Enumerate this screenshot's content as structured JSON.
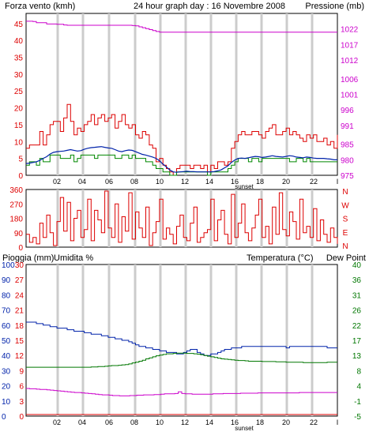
{
  "colors": {
    "wind": "#dd0000",
    "gust": "#dd0000",
    "avg_wind": "#008800",
    "pressure": "#cc00cc",
    "direction": "#dd0000",
    "humidity": "#0022aa",
    "temperature": "#007700",
    "dewpoint": "#cc00cc",
    "rain": "#dd0000",
    "grid": "#cccccc",
    "frame": "#000000",
    "text": "#000000"
  },
  "chart_data": [
    {
      "type": "line",
      "title": "24 hour graph day : 16 Novembre 2008",
      "left_axis_label": "Forza vento (kmh)",
      "right_axis_label": "Pressione (mb)",
      "x_ticks": [
        "02",
        "04",
        "06",
        "08",
        "10",
        "12",
        "14",
        "16",
        "18",
        "20",
        "22",
        "I"
      ],
      "sunset_label": "sunset",
      "left_ticks": [
        "0",
        "5",
        "10",
        "15",
        "20",
        "25",
        "30",
        "35",
        "40",
        "45"
      ],
      "right_ticks": [
        "975",
        "980",
        "985",
        "991",
        "996",
        "1001",
        "1006",
        "1012",
        "1017",
        "1022"
      ],
      "ylim_left": [
        0,
        48
      ],
      "ylim_right": [
        975,
        1027
      ],
      "series": [
        {
          "key": "wind_gust",
          "values": [
            8,
            9,
            9,
            9,
            13,
            9,
            12,
            15,
            16,
            16,
            13,
            17,
            21,
            16,
            12,
            14,
            13,
            15,
            16,
            18,
            15,
            17,
            18,
            16,
            17,
            18,
            14,
            16,
            18,
            15,
            14,
            15,
            12,
            11,
            13,
            12,
            9,
            8,
            4,
            5,
            3,
            2,
            1,
            0,
            2,
            3,
            3,
            3,
            2,
            3,
            3,
            2,
            3,
            1,
            3,
            2,
            4,
            4,
            3,
            4,
            8,
            10,
            12,
            13,
            12,
            12,
            13,
            13,
            12,
            11,
            13,
            14,
            15,
            12,
            12,
            13,
            14,
            12,
            13,
            12,
            11,
            10,
            12,
            11,
            12,
            10,
            10,
            11,
            9,
            10,
            8,
            12
          ]
        },
        {
          "key": "wind_avg",
          "values": [
            3,
            4,
            4,
            3,
            5,
            4,
            4,
            6,
            6,
            6,
            5,
            5,
            5,
            6,
            4,
            5,
            6,
            6,
            6,
            6,
            5,
            6,
            6,
            6,
            6,
            6,
            5,
            5,
            6,
            6,
            5,
            6,
            5,
            5,
            5,
            4,
            4,
            3,
            2,
            2,
            1,
            1,
            0,
            0,
            1,
            1,
            1,
            1,
            1,
            1,
            1,
            1,
            1,
            0,
            1,
            1,
            1,
            1,
            1,
            2,
            3,
            4,
            5,
            5,
            5,
            4,
            5,
            5,
            4,
            5,
            5,
            5,
            5,
            5,
            5,
            5,
            5,
            4,
            4,
            5,
            5,
            4,
            5,
            4,
            4,
            4,
            4,
            4,
            4,
            4,
            4,
            4
          ]
        },
        {
          "key": "wind_mean",
          "values": [
            3.5,
            3.6,
            3.8,
            4,
            4.4,
            5,
            5.5,
            6.3,
            6.8,
            7,
            7.1,
            7.2,
            7.4,
            7.6,
            7.4,
            7.2,
            7.3,
            7.7,
            8,
            8.2,
            8.3,
            8.4,
            8.5,
            8.3,
            8.1,
            8,
            7.6,
            7.2,
            7,
            7.3,
            7.5,
            7.4,
            7,
            6.6,
            6.2,
            6,
            5.7,
            5.4,
            5,
            4.3,
            3.3,
            2.5,
            1.6,
            1,
            0.9,
            1,
            1.1,
            1.2,
            1.1,
            1.1,
            1,
            1,
            1,
            1,
            1,
            1.1,
            1.3,
            1.6,
            2.2,
            2.8,
            3.8,
            4.5,
            5,
            5.1,
            5,
            5.2,
            5.4,
            5.6,
            5.5,
            5.3,
            5.4,
            5.6,
            5.8,
            5.6,
            5.5,
            5.4,
            5.6,
            5.8,
            5.7,
            5.4,
            5.3,
            5.2,
            5.4,
            5.3,
            5.1,
            5,
            5,
            5,
            4.9,
            4.8,
            4.6,
            4.6
          ]
        },
        {
          "key": "pressure",
          "values": [
            1024.5,
            1024.5,
            1024.4,
            1024,
            1024,
            1024,
            1023.6,
            1023.6,
            1023.6,
            1023.5,
            1023.5,
            1023.3,
            1023.2,
            1023.2,
            1023.2,
            1023.2,
            1023.2,
            1023.2,
            1023.2,
            1023.2,
            1023.2,
            1023.2,
            1023.2,
            1023.2,
            1023.2,
            1023.2,
            1023.2,
            1023.2,
            1023.2,
            1023.2,
            1023.2,
            1023.1,
            1023,
            1022.7,
            1022.4,
            1022.1,
            1021.8,
            1021.5,
            1021.2,
            1021,
            1021,
            1021,
            1021,
            1021,
            1021,
            1021,
            1021,
            1021,
            1021,
            1021,
            1021,
            1021,
            1021,
            1021,
            1021,
            1021,
            1021,
            1021,
            1021,
            1021,
            1021,
            1021,
            1021,
            1021,
            1021,
            1021,
            1021,
            1021,
            1021,
            1021,
            1021,
            1021,
            1021,
            1021,
            1021,
            1021,
            1021,
            1021,
            1021,
            1021,
            1021,
            1021,
            1021,
            1021,
            1021,
            1021,
            1021,
            1021,
            1021,
            1021,
            1021,
            1021
          ]
        }
      ]
    },
    {
      "type": "line",
      "left_ticks": [
        "360",
        "270",
        "180",
        "90",
        "0"
      ],
      "right_ticks": [
        "N",
        "W",
        "S",
        "E",
        "N"
      ],
      "ylim": [
        0,
        360
      ],
      "series": [
        {
          "key": "wind_direction",
          "values": [
            80,
            30,
            60,
            20,
            150,
            60,
            200,
            90,
            10,
            160,
            310,
            100,
            280,
            40,
            180,
            230,
            60,
            110,
            300,
            40,
            230,
            170,
            90,
            350,
            120,
            60,
            270,
            30,
            190,
            100,
            340,
            50,
            220,
            120,
            60,
            250,
            10,
            90,
            160,
            300,
            50,
            120,
            80,
            20,
            130,
            200,
            60,
            40,
            150,
            250,
            30,
            60,
            90,
            110,
            300,
            40,
            170,
            230,
            80,
            20,
            330,
            60,
            150,
            270,
            90,
            40,
            120,
            200,
            300,
            60,
            130,
            20,
            250,
            80,
            340,
            110,
            70,
            220,
            160,
            50,
            300,
            90,
            130,
            60,
            240,
            40,
            170,
            80,
            30,
            120,
            60,
            20
          ]
        }
      ]
    },
    {
      "type": "line",
      "rain_label": "Pioggia (mm)",
      "humidity_label": "Umidita %",
      "temperature_label": "Temperatura (°C)",
      "dewpoint_label": "Dew Point",
      "x_ticks": [
        "02",
        "04",
        "06",
        "08",
        "10",
        "12",
        "14",
        "16",
        "18",
        "20",
        "22",
        "I"
      ],
      "sunset_label": "sunset",
      "humidity_ticks": [
        "0",
        "10",
        "20",
        "30",
        "40",
        "50",
        "60",
        "70",
        "80",
        "90",
        "100"
      ],
      "rain_ticks": [
        "0",
        "3",
        "6",
        "9",
        "12",
        "15",
        "18",
        "21",
        "24",
        "27",
        "30"
      ],
      "temp_ticks": [
        "-5",
        "-1",
        "4",
        "8",
        "13",
        "17",
        "22",
        "26",
        "31",
        "36",
        "40"
      ],
      "ylim_humidity": [
        0,
        100
      ],
      "ylim_temp": [
        -5,
        40
      ],
      "series": [
        {
          "key": "humidity",
          "values": [
            62,
            62,
            62,
            61,
            61,
            60,
            60,
            59,
            59,
            58,
            58,
            58,
            57,
            57,
            56,
            56,
            56,
            55,
            55,
            54,
            54,
            54,
            53,
            53,
            52,
            52,
            51,
            51,
            50,
            50,
            49,
            48,
            47,
            46,
            46,
            45,
            45,
            44,
            44,
            43,
            43,
            42,
            42,
            42,
            41,
            41,
            42,
            43,
            44,
            44,
            42,
            41,
            40,
            40,
            41,
            41,
            42,
            43,
            44,
            44,
            45,
            45,
            45,
            46,
            46,
            46,
            46,
            46,
            46,
            46,
            46,
            46,
            46,
            46,
            46,
            46,
            45,
            46,
            46,
            46,
            46,
            46,
            46,
            46,
            46,
            46,
            46,
            46,
            45,
            45,
            45,
            45
          ]
        },
        {
          "key": "temperature",
          "values": [
            9.5,
            9.5,
            9.5,
            9.5,
            9.5,
            9.5,
            9.5,
            9.5,
            9.5,
            9.5,
            9.5,
            9.5,
            9.5,
            9.5,
            9.5,
            9.5,
            9.5,
            9.5,
            9.5,
            9.6,
            9.6,
            9.7,
            9.7,
            9.8,
            9.9,
            10,
            10,
            10.1,
            10.2,
            10.3,
            10.5,
            10.8,
            11,
            11.3,
            11.6,
            12,
            12.3,
            12.6,
            12.9,
            13.1,
            13.3,
            13.5,
            13.5,
            13.6,
            13.7,
            13.7,
            13.7,
            13.6,
            13.6,
            13.5,
            13.4,
            13.2,
            13,
            12.8,
            12.6,
            12.4,
            12.2,
            12,
            11.9,
            11.8,
            11.7,
            11.6,
            11.5,
            11.5,
            11.4,
            11.3,
            11.3,
            11.3,
            11.3,
            11.2,
            11.2,
            11.2,
            11.2,
            11.1,
            11.1,
            11.1,
            11,
            11,
            11,
            11,
            11,
            10.9,
            10.9,
            10.9,
            10.9,
            10.9,
            10.9,
            10.9,
            11,
            11,
            11,
            11
          ]
        },
        {
          "key": "dewpoint",
          "values": [
            3.2,
            3.1,
            3.1,
            3,
            2.9,
            2.9,
            2.8,
            2.7,
            2.6,
            2.5,
            2.4,
            2.3,
            2.2,
            2.1,
            2,
            2,
            1.9,
            1.8,
            1.7,
            1.6,
            1.5,
            1.4,
            1.3,
            1.3,
            1.2,
            1.1,
            1.1,
            1,
            1,
            1,
            1.1,
            1.1,
            1.2,
            1.2,
            1.3,
            1.3,
            1.3,
            1.4,
            1.4,
            1.5,
            1.6,
            1.6,
            1.6,
            1.7,
            2.2,
            1.7,
            1.6,
            1.6,
            1.5,
            1.5,
            1.5,
            1.5,
            1.5,
            1.5,
            1.6,
            1.6,
            1.6,
            1.7,
            1.7,
            1.7,
            1.7,
            1.7,
            1.8,
            1.8,
            1.8,
            1.8,
            1.8,
            1.9,
            1.9,
            1.9,
            1.9,
            1.9,
            1.9,
            1.9,
            1.9,
            1.9,
            1.9,
            1.9,
            1.9,
            2,
            2,
            2,
            2,
            2,
            2,
            2,
            2,
            2,
            2,
            2,
            2
          ]
        },
        {
          "key": "rain",
          "values": [
            0,
            0,
            0,
            0,
            0,
            0,
            0,
            0,
            0,
            0,
            0,
            0,
            0,
            0,
            0,
            0,
            0,
            0,
            0,
            0,
            0,
            0,
            0,
            0,
            0,
            0,
            0,
            0,
            0,
            0,
            0,
            0,
            0,
            0,
            0,
            0,
            0,
            0,
            0,
            0,
            0,
            0,
            0,
            0,
            0,
            0,
            0,
            0,
            0,
            0,
            0,
            0,
            0,
            0,
            0,
            0,
            0,
            0,
            0,
            0,
            0,
            0,
            0,
            0,
            0,
            0,
            0,
            0,
            0,
            0,
            0,
            0,
            0,
            0,
            0,
            0,
            0,
            0,
            0,
            0,
            0,
            0,
            0,
            0,
            0,
            0,
            0,
            0,
            0,
            0,
            0,
            0
          ]
        }
      ]
    }
  ]
}
